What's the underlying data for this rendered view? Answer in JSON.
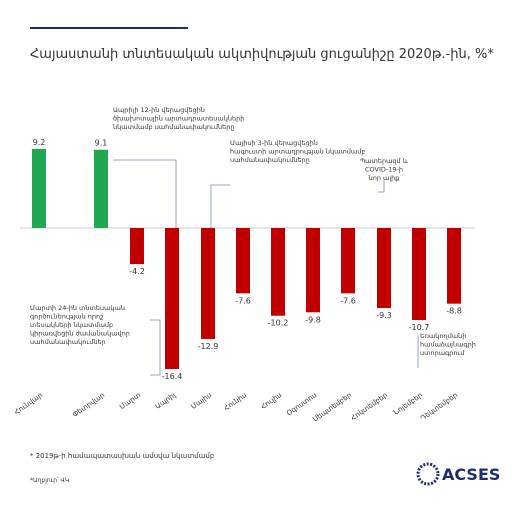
{
  "chart_data": {
    "type": "bar",
    "title": "Հայաստանի տնտեսական ակտիվության ցուցանիշը 2020թ.-ին, %*",
    "categories": [
      "Հունվար",
      "Փետրվար",
      "Մարտ",
      "Ապրիլ",
      "Մայիս",
      "Հունիս",
      "Հուլիս",
      "Օգոստոս",
      "Սեպտեմբեր",
      "Հոկտեմբեր",
      "Նոյեմբեր",
      "Դեկտեմբեր"
    ],
    "values": [
      9.2,
      9.1,
      -4.2,
      -16.4,
      -12.9,
      -7.6,
      -10.2,
      -9.8,
      -7.6,
      -9.3,
      -10.7,
      -8.8
    ],
    "colors": [
      "#1fa84f",
      "#1fa84f",
      "#c00000",
      "#c00000",
      "#c00000",
      "#c00000",
      "#c00000",
      "#c00000",
      "#c00000",
      "#c00000",
      "#c00000",
      "#c00000"
    ],
    "annotations": [
      "Ապրիլի 12-ին վերացվեցին ծխախոտային արտադրատեսակների նկատմամբ սահմանափակումները",
      "Մայիսի 3-ին վերացվեցին հագուստի արտադրության նկատմամբ սահմանափակումները",
      "Պատերազմ և COVID-19-ի նոր ալիք",
      "Մարտի 24-ին տնտեսական գործունեության որոշ տեսակների նկատմամբ կիրառվեցին ժամանակավոր սահմանափակումներ",
      "Եռակողմանի համաձայնագրի ստորագրում"
    ],
    "footnote": "* 2019թ-ի համապատասխան ամսվա նկատմամբ",
    "source": "*Աղբյուր՝ ՎԿ",
    "logo": "ACSES"
  }
}
